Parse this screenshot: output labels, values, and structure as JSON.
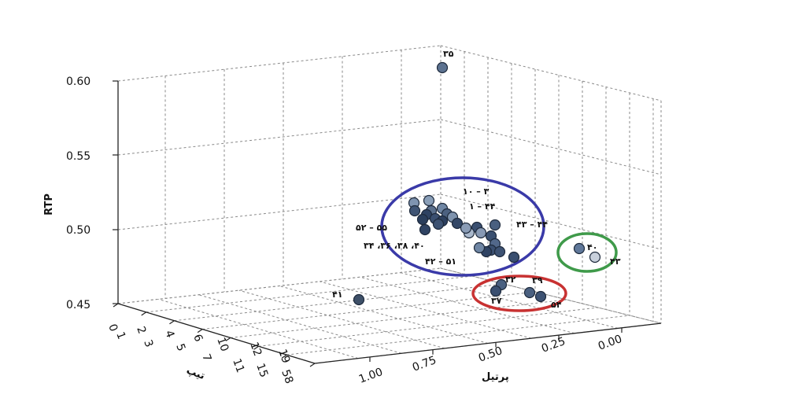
{
  "chart_data": {
    "type": "scatter",
    "projection": "3d",
    "title": "",
    "axes": {
      "vertical": {
        "label": "RTP",
        "ticks": [
          "0.45",
          "0.50",
          "0.55",
          "0.60"
        ],
        "range": [
          0.45,
          0.6
        ]
      },
      "right_depth": {
        "label": "پرتیل",
        "ticks": [
          "1.00",
          "0.75",
          "0.50",
          "0.25",
          "0.00"
        ],
        "range": [
          0.0,
          1.0
        ]
      },
      "left_depth": {
        "label": "تیپ",
        "ticks_inner": [
          "0",
          "2",
          "4",
          "6",
          "10",
          "12",
          "19"
        ],
        "ticks_outer": [
          "1",
          "3",
          "5",
          "7",
          "11",
          "15",
          "58"
        ]
      }
    },
    "grid": true,
    "point_labels": [
      "۳۵",
      "۱۰ – ۳",
      "۱ – ۴۴",
      "۵۲ – ۵۵",
      "۴۳ – ۴۴",
      "۳۴ ،۳۶ ،۳۸ ،۴۰",
      "۴۲ – ۵۱",
      "۴۰",
      "۴۳",
      "۳۲",
      "۳۹",
      "۳۷",
      "۵۴",
      "۴۱"
    ],
    "clusters": [
      {
        "color": "#3a3aa8"
      },
      {
        "color": "#3f9a4a"
      },
      {
        "color": "#c83232"
      }
    ]
  }
}
